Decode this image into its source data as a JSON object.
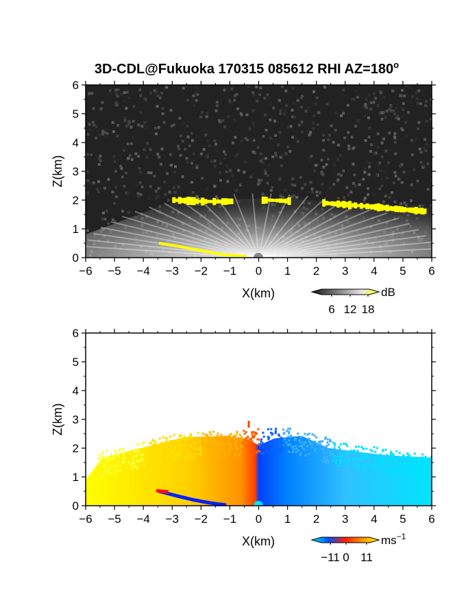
{
  "chart_data": [
    {
      "type": "heatmap",
      "title": "3D-CDL@Fukuoka 170315 085612 RHI AZ=180",
      "title_sup": "o",
      "xlabel": "X(km)",
      "ylabel": "Z(km)",
      "xlim": [
        -6,
        6
      ],
      "ylim": [
        0,
        6
      ],
      "xticks": [
        "-6",
        "-5",
        "-4",
        "-3",
        "-2",
        "-1",
        "0",
        "1",
        "2",
        "3",
        "4",
        "5",
        "6"
      ],
      "yticks": [
        "0",
        "1",
        "2",
        "3",
        "4",
        "5",
        "6"
      ],
      "colorbar": {
        "unit": "dB",
        "unit_sup": "",
        "ticks": [
          "6",
          "12",
          "18"
        ],
        "colors": [
          "#1a1a1a",
          "#5a5a5a",
          "#a0a0a0",
          "#e8e8e8",
          "#ffff00"
        ]
      },
      "features": {
        "cloud_base_layer_km": [
          [
            -3.0,
            2.0
          ],
          [
            -2.0,
            1.95
          ],
          [
            -1.2,
            1.95
          ],
          [
            0.3,
            2.0
          ],
          [
            2.2,
            1.9
          ],
          [
            3.5,
            1.8
          ],
          [
            5.8,
            1.6
          ]
        ],
        "ground_echo_km": [
          [
            -3.5,
            0.5
          ],
          [
            -1.0,
            0.05
          ],
          [
            0.0,
            0.0
          ]
        ]
      }
    },
    {
      "type": "heatmap",
      "title": "",
      "xlabel": "X(km)",
      "ylabel": "Z(km)",
      "xlim": [
        -6,
        6
      ],
      "ylim": [
        0,
        6
      ],
      "xticks": [
        "-6",
        "-5",
        "-4",
        "-3",
        "-2",
        "-1",
        "0",
        "1",
        "2",
        "3",
        "4",
        "5",
        "6"
      ],
      "yticks": [
        "0",
        "1",
        "2",
        "3",
        "4",
        "5",
        "6"
      ],
      "colorbar": {
        "unit": "ms",
        "unit_sup": "-1",
        "ticks": [
          "-11",
          "0",
          "11"
        ],
        "colors": [
          "#00e5ff",
          "#0050ff",
          "#ff2000",
          "#ff9000",
          "#ffff00"
        ]
      },
      "features": {
        "echo_top_km": [
          [
            -5.5,
            1.7
          ],
          [
            -3.0,
            2.3
          ],
          [
            -0.5,
            2.5
          ],
          [
            1.0,
            2.6
          ],
          [
            3.0,
            2.0
          ],
          [
            6.0,
            1.6
          ]
        ],
        "zero_velocity_x_km": 0.0
      }
    }
  ]
}
